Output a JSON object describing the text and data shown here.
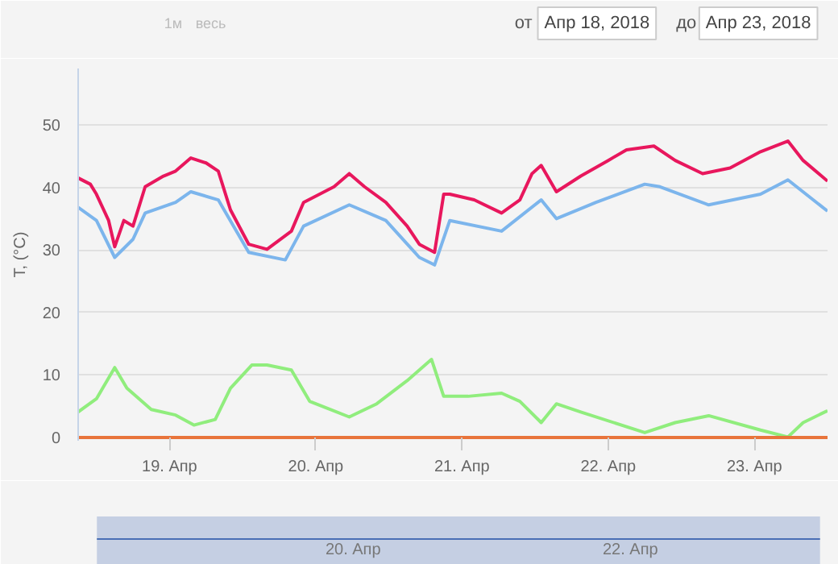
{
  "chart_data": {
    "type": "line",
    "ylabel": "T, (°C)",
    "annotations": [
      "1м",
      "весь",
      "от",
      "Апр 18, 2018",
      "до",
      "Апр 23, 2018",
      "20. Апр",
      "22. Апр"
    ],
    "xlim": [
      "2018-04-18T09:00",
      "2018-04-23T12:00"
    ],
    "xticks": [
      {
        "value": "2018-04-19",
        "label": "19. Апр"
      },
      {
        "value": "2018-04-20",
        "label": "20. Апр"
      },
      {
        "value": "2018-04-21",
        "label": "21. Апр"
      },
      {
        "value": "2018-04-22",
        "label": "22. Апр"
      },
      {
        "value": "2018-04-23",
        "label": "23. Апр"
      }
    ],
    "ylim": [
      -0.5,
      59
    ],
    "yticks": [
      0,
      10,
      20,
      30,
      40,
      50
    ],
    "grid": "y",
    "marker": "none",
    "line_style": "solid",
    "series": [
      {
        "color": "#e8175d",
        "x": [
          "2018-04-18T09:00",
          "2018-04-18T11:00",
          "2018-04-18T12:00",
          "2018-04-18T14:00",
          "2018-04-18T15:00",
          "2018-04-18T16:30",
          "2018-04-18T18:00",
          "2018-04-18T20:00",
          "2018-04-18T23:00",
          "2018-04-19T01:00",
          "2018-04-19T03:30",
          "2018-04-19T06:00",
          "2018-04-19T08:00",
          "2018-04-19T10:00",
          "2018-04-19T13:00",
          "2018-04-19T16:00",
          "2018-04-19T20:00",
          "2018-04-19T22:00",
          "2018-04-20T03:00",
          "2018-04-20T05:30",
          "2018-04-20T08:00",
          "2018-04-20T11:30",
          "2018-04-20T15:00",
          "2018-04-20T17:00",
          "2018-04-20T19:30",
          "2018-04-20T21:00",
          "2018-04-20T22:00",
          "2018-04-21T02:00",
          "2018-04-21T06:30",
          "2018-04-21T09:30",
          "2018-04-21T11:30",
          "2018-04-21T13:00",
          "2018-04-21T15:30",
          "2018-04-21T19:30",
          "2018-04-22T00:00",
          "2018-04-22T03:00",
          "2018-04-22T07:30",
          "2018-04-22T11:00",
          "2018-04-22T15:30",
          "2018-04-22T20:00",
          "2018-04-23T01:00",
          "2018-04-23T05:30",
          "2018-04-23T08:00",
          "2018-04-23T12:00"
        ],
        "values": [
          41.5,
          40.5,
          38.9,
          34.7,
          30.5,
          34.7,
          33.8,
          40.1,
          41.8,
          42.6,
          44.7,
          43.9,
          42.6,
          36.4,
          30.9,
          30.1,
          33.0,
          37.6,
          40.1,
          42.2,
          40.1,
          37.6,
          33.8,
          30.9,
          29.6,
          38.9,
          38.9,
          38.0,
          35.9,
          38.0,
          42.2,
          43.5,
          39.3,
          41.8,
          44.3,
          46.0,
          46.6,
          44.3,
          42.2,
          43.1,
          45.7,
          47.4,
          44.3,
          41.0
        ]
      },
      {
        "color": "#7cb5ec",
        "x": [
          "2018-04-18T09:00",
          "2018-04-18T12:00",
          "2018-04-18T15:00",
          "2018-04-18T18:00",
          "2018-04-18T20:00",
          "2018-04-19T01:00",
          "2018-04-19T03:30",
          "2018-04-19T08:00",
          "2018-04-19T13:00",
          "2018-04-19T19:00",
          "2018-04-19T22:00",
          "2018-04-20T05:30",
          "2018-04-20T11:30",
          "2018-04-20T17:00",
          "2018-04-20T19:30",
          "2018-04-20T22:00",
          "2018-04-21T06:30",
          "2018-04-21T13:00",
          "2018-04-21T15:30",
          "2018-04-21T22:00",
          "2018-04-22T06:00",
          "2018-04-22T08:30",
          "2018-04-22T16:30",
          "2018-04-23T01:00",
          "2018-04-23T05:30",
          "2018-04-23T12:00"
        ],
        "values": [
          36.8,
          34.7,
          28.8,
          31.7,
          35.9,
          37.6,
          39.3,
          38.0,
          29.6,
          28.4,
          33.8,
          37.2,
          34.7,
          28.8,
          27.6,
          34.7,
          33.0,
          38.0,
          35.0,
          37.6,
          40.5,
          40.1,
          37.2,
          38.9,
          41.2,
          36.2
        ]
      },
      {
        "color": "#90ed7d",
        "x": [
          "2018-04-18T09:00",
          "2018-04-18T12:00",
          "2018-04-18T15:00",
          "2018-04-18T17:00",
          "2018-04-18T21:00",
          "2018-04-19T01:00",
          "2018-04-19T04:00",
          "2018-04-19T07:30",
          "2018-04-19T10:00",
          "2018-04-19T13:30",
          "2018-04-19T16:00",
          "2018-04-19T20:00",
          "2018-04-19T23:00",
          "2018-04-20T05:30",
          "2018-04-20T10:00",
          "2018-04-20T15:00",
          "2018-04-20T19:00",
          "2018-04-20T21:00",
          "2018-04-21T01:00",
          "2018-04-21T06:30",
          "2018-04-21T09:30",
          "2018-04-21T13:00",
          "2018-04-21T15:30",
          "2018-04-21T19:30",
          "2018-04-22T06:00",
          "2018-04-22T11:00",
          "2018-04-22T16:30",
          "2018-04-23T01:00",
          "2018-04-23T05:30",
          "2018-04-23T08:00",
          "2018-04-23T12:00"
        ],
        "values": [
          4.1,
          6.2,
          11.2,
          7.9,
          4.5,
          3.6,
          2.0,
          2.9,
          7.9,
          11.6,
          11.6,
          10.8,
          5.8,
          3.3,
          5.4,
          9.1,
          12.5,
          6.6,
          6.6,
          7.1,
          5.8,
          2.4,
          5.4,
          4.1,
          0.8,
          2.4,
          3.5,
          1.2,
          0.1,
          2.4,
          4.3
        ]
      },
      {
        "color": "#e8743b",
        "x": [
          "2018-04-18T09:00",
          "2018-04-23T12:00"
        ],
        "values": [
          0,
          0
        ]
      }
    ]
  }
}
